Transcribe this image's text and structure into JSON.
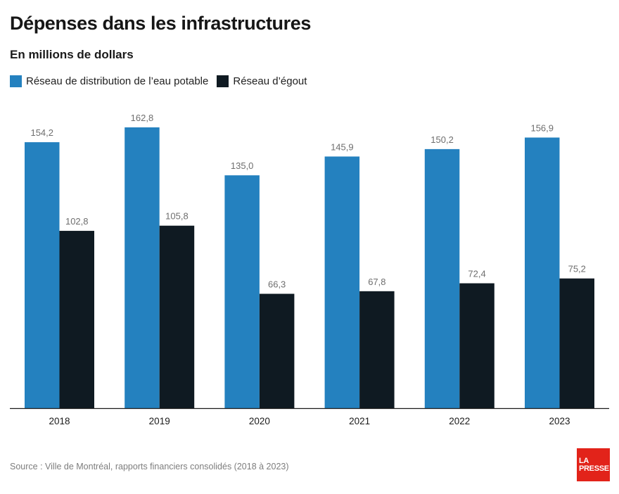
{
  "header": {
    "title": "Dépenses dans les infrastructures",
    "subtitle": "En millions de dollars"
  },
  "legend": [
    {
      "label": "Réseau de distribution de l’eau potable",
      "color": "#2481bf"
    },
    {
      "label": "Réseau d’égout",
      "color": "#0f1a22"
    }
  ],
  "chart_data": {
    "type": "bar",
    "title": "Dépenses dans les infrastructures",
    "subtitle": "En millions de dollars",
    "categories": [
      "2018",
      "2019",
      "2020",
      "2021",
      "2022",
      "2023"
    ],
    "series": [
      {
        "name": "Réseau de distribution de l’eau potable",
        "color": "#2481bf",
        "values": [
          154.2,
          162.8,
          135.0,
          145.9,
          150.2,
          156.9
        ],
        "labels": [
          "154,2",
          "162,8",
          "135,0",
          "145,9",
          "150,2",
          "156,9"
        ]
      },
      {
        "name": "Réseau d’égout",
        "color": "#0f1a22",
        "values": [
          102.8,
          105.8,
          66.3,
          67.8,
          72.4,
          75.2
        ],
        "labels": [
          "102,8",
          "105,8",
          "66,3",
          "67,8",
          "72,4",
          "75,2"
        ]
      }
    ],
    "ylim": [
      0,
      180
    ],
    "xlabel": "",
    "ylabel": "",
    "grid": false
  },
  "footer": {
    "source": "Source : Ville de Montréal, rapports financiers consolidés (2018 à 2023)",
    "logo_line1": "LA",
    "logo_line2": "PRESSE"
  }
}
